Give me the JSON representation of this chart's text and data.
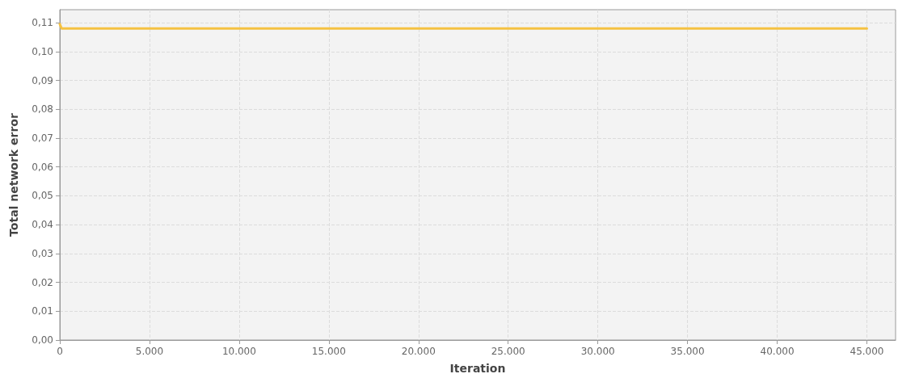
{
  "chart_data": {
    "type": "line",
    "xlabel": "Iteration",
    "ylabel": "Total network error",
    "x": [
      0,
      100,
      45000
    ],
    "series": [
      {
        "color": "#f5c242",
        "values": [
          0.1095,
          0.108,
          0.108
        ]
      }
    ],
    "xlim": [
      0,
      46600
    ],
    "ylim": [
      0,
      0.1145
    ],
    "xticks": [
      {
        "value": 0,
        "label": "0"
      },
      {
        "value": 5000,
        "label": "5.000"
      },
      {
        "value": 10000,
        "label": "10.000"
      },
      {
        "value": 15000,
        "label": "15.000"
      },
      {
        "value": 20000,
        "label": "20.000"
      },
      {
        "value": 25000,
        "label": "25.000"
      },
      {
        "value": 30000,
        "label": "30.000"
      },
      {
        "value": 35000,
        "label": "35.000"
      },
      {
        "value": 40000,
        "label": "40.000"
      },
      {
        "value": 45000,
        "label": "45.000"
      }
    ],
    "yticks": [
      {
        "value": 0,
        "label": "0,00"
      },
      {
        "value": 0.01,
        "label": "0,01"
      },
      {
        "value": 0.02,
        "label": "0,02"
      },
      {
        "value": 0.03,
        "label": "0,03"
      },
      {
        "value": 0.04,
        "label": "0,04"
      },
      {
        "value": 0.05,
        "label": "0,05"
      },
      {
        "value": 0.06,
        "label": "0,06"
      },
      {
        "value": 0.07,
        "label": "0,07"
      },
      {
        "value": 0.08,
        "label": "0,08"
      },
      {
        "value": 0.09,
        "label": "0,09"
      },
      {
        "value": 0.1,
        "label": "0,10"
      },
      {
        "value": 0.11,
        "label": "0,11"
      }
    ],
    "grid": true,
    "marker": "none",
    "line_style": "solid"
  }
}
